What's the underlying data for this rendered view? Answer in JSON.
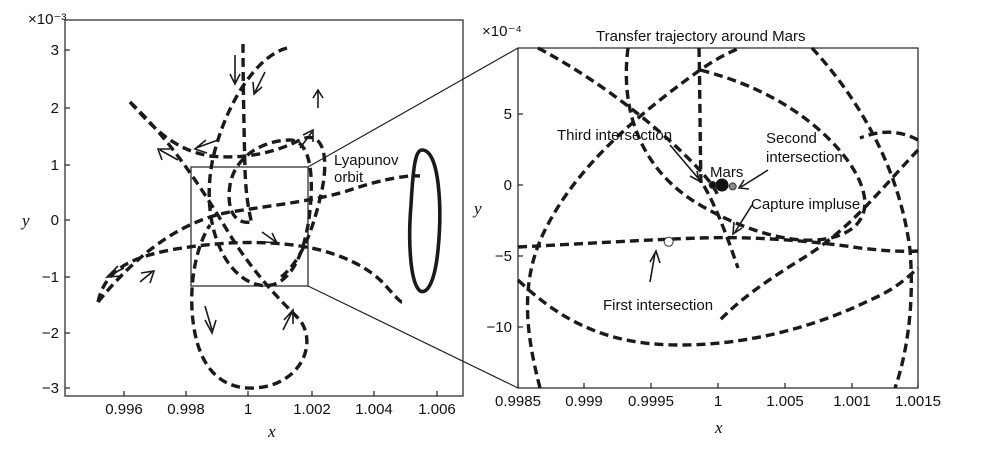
{
  "chart_data": [
    {
      "type": "line",
      "panel": "left",
      "title": "",
      "xlabel": "x",
      "ylabel": "y",
      "y_multiplier": "×10⁻³",
      "xlim": [
        0.995,
        1.006
      ],
      "ylim": [
        -3.1,
        3.1
      ],
      "x_ticks": [
        "0.996",
        "0.998",
        "1",
        "1.002",
        "1.004",
        "1.006"
      ],
      "y_ticks": [
        "3",
        "2",
        "1",
        "0",
        "−1",
        "−2",
        "−3"
      ],
      "annotations": [
        "Lyapunov",
        "orbit"
      ],
      "zoom_box": {
        "x": [
          0.99985,
          1.0015
        ],
        "y": [
          -1.2,
          0.95
        ]
      },
      "series": [
        {
          "style": "solid",
          "x": [
            1.0047,
            1.0051,
            1.0049,
            1.0045,
            1.0043,
            1.0045,
            1.0047
          ],
          "y": [
            1.3,
            0.3,
            -1.0,
            -1.2,
            -0.2,
            0.9,
            1.3
          ]
        },
        {
          "style": "dashed",
          "x": [
            0.99585,
            0.9962,
            0.997,
            0.9985,
            1.0,
            1.001,
            1.0018,
            1.0026,
            1.0034,
            1.004,
            1.0042
          ],
          "y": [
            -1.45,
            -0.9,
            -0.6,
            -0.4,
            -0.4,
            -0.35,
            -0.3,
            -0.5,
            -0.9,
            -1.3,
            -1.45
          ]
        },
        {
          "style": "dashed",
          "x": [
            0.99585,
            0.997,
            0.9985,
            1.0,
            1.0012,
            1.0022,
            1.0032,
            1.004,
            1.0046
          ],
          "y": [
            -1.45,
            -0.9,
            -0.3,
            0.1,
            0.2,
            0.4,
            0.7,
            0.8,
            0.3
          ]
        },
        {
          "style": "dashed",
          "x": [
            1.0,
            0.999,
            0.9982,
            0.9985,
            0.9995,
            1.0005,
            1.0013,
            1.0017,
            1.0014,
            1.0004,
            0.9995,
            0.9994,
            1.0
          ],
          "y": [
            3.0,
            2.7,
            1.5,
            0.0,
            -1.2,
            -1.5,
            -0.9,
            0.3,
            1.2,
            1.35,
            0.8,
            0.0,
            -0.4
          ]
        },
        {
          "style": "dashed",
          "x": [
            0.9966,
            0.9975,
            0.9985,
            0.9995,
            1.0005,
            1.0013,
            1.0017,
            1.0015,
            1.0008,
            1.0001,
            0.9996,
            0.9994
          ],
          "y": [
            2.1,
            1.4,
            0.8,
            0.3,
            -0.2,
            -0.8,
            -1.5,
            -2.2,
            -2.9,
            -3.0,
            -2.5,
            -1.6
          ]
        },
        {
          "style": "dashed",
          "x": [
            0.9966,
            0.9976,
            0.9988,
            1.0,
            1.0012,
            1.002,
            1.0026
          ],
          "y": [
            2.1,
            1.3,
            1.2,
            1.0,
            0.4,
            -0.4,
            -1.2
          ]
        },
        {
          "style": "dashed",
          "x": [
            0.9994,
            0.999,
            0.9992,
            1.0,
            1.0007,
            1.0012,
            1.0014
          ],
          "y": [
            1.55,
            0.6,
            -0.2,
            -0.55,
            -0.75,
            -0.45,
            0.4
          ]
        }
      ]
    },
    {
      "type": "line",
      "panel": "right",
      "title": "Transfer trajectory around Mars",
      "xlabel": "x",
      "ylabel": "y",
      "y_multiplier": "×10⁻⁴",
      "xlim": [
        0.99985,
        1.0015
      ],
      "ylim": [
        -14.2,
        9.5
      ],
      "x_ticks": [
        "0.9985",
        "0.999",
        "0.9995",
        "1",
        "1.005",
        "1.001",
        "1.0015"
      ],
      "y_ticks": [
        "5",
        "0",
        "−5",
        "−10"
      ],
      "annotations": [
        "Third intersection",
        "Second",
        "intersection",
        "Mars",
        "Capture impluse",
        "First intersection"
      ],
      "points": [
        {
          "name": "Mars",
          "x": 1.00003,
          "y": 0.0
        },
        {
          "name": "Third intersection",
          "x": 0.99996,
          "y": 0.0
        },
        {
          "name": "Second intersection",
          "x": 1.00011,
          "y": -0.1
        },
        {
          "name": "First intersection",
          "x": 0.99963,
          "y": -4.0
        }
      ]
    }
  ]
}
